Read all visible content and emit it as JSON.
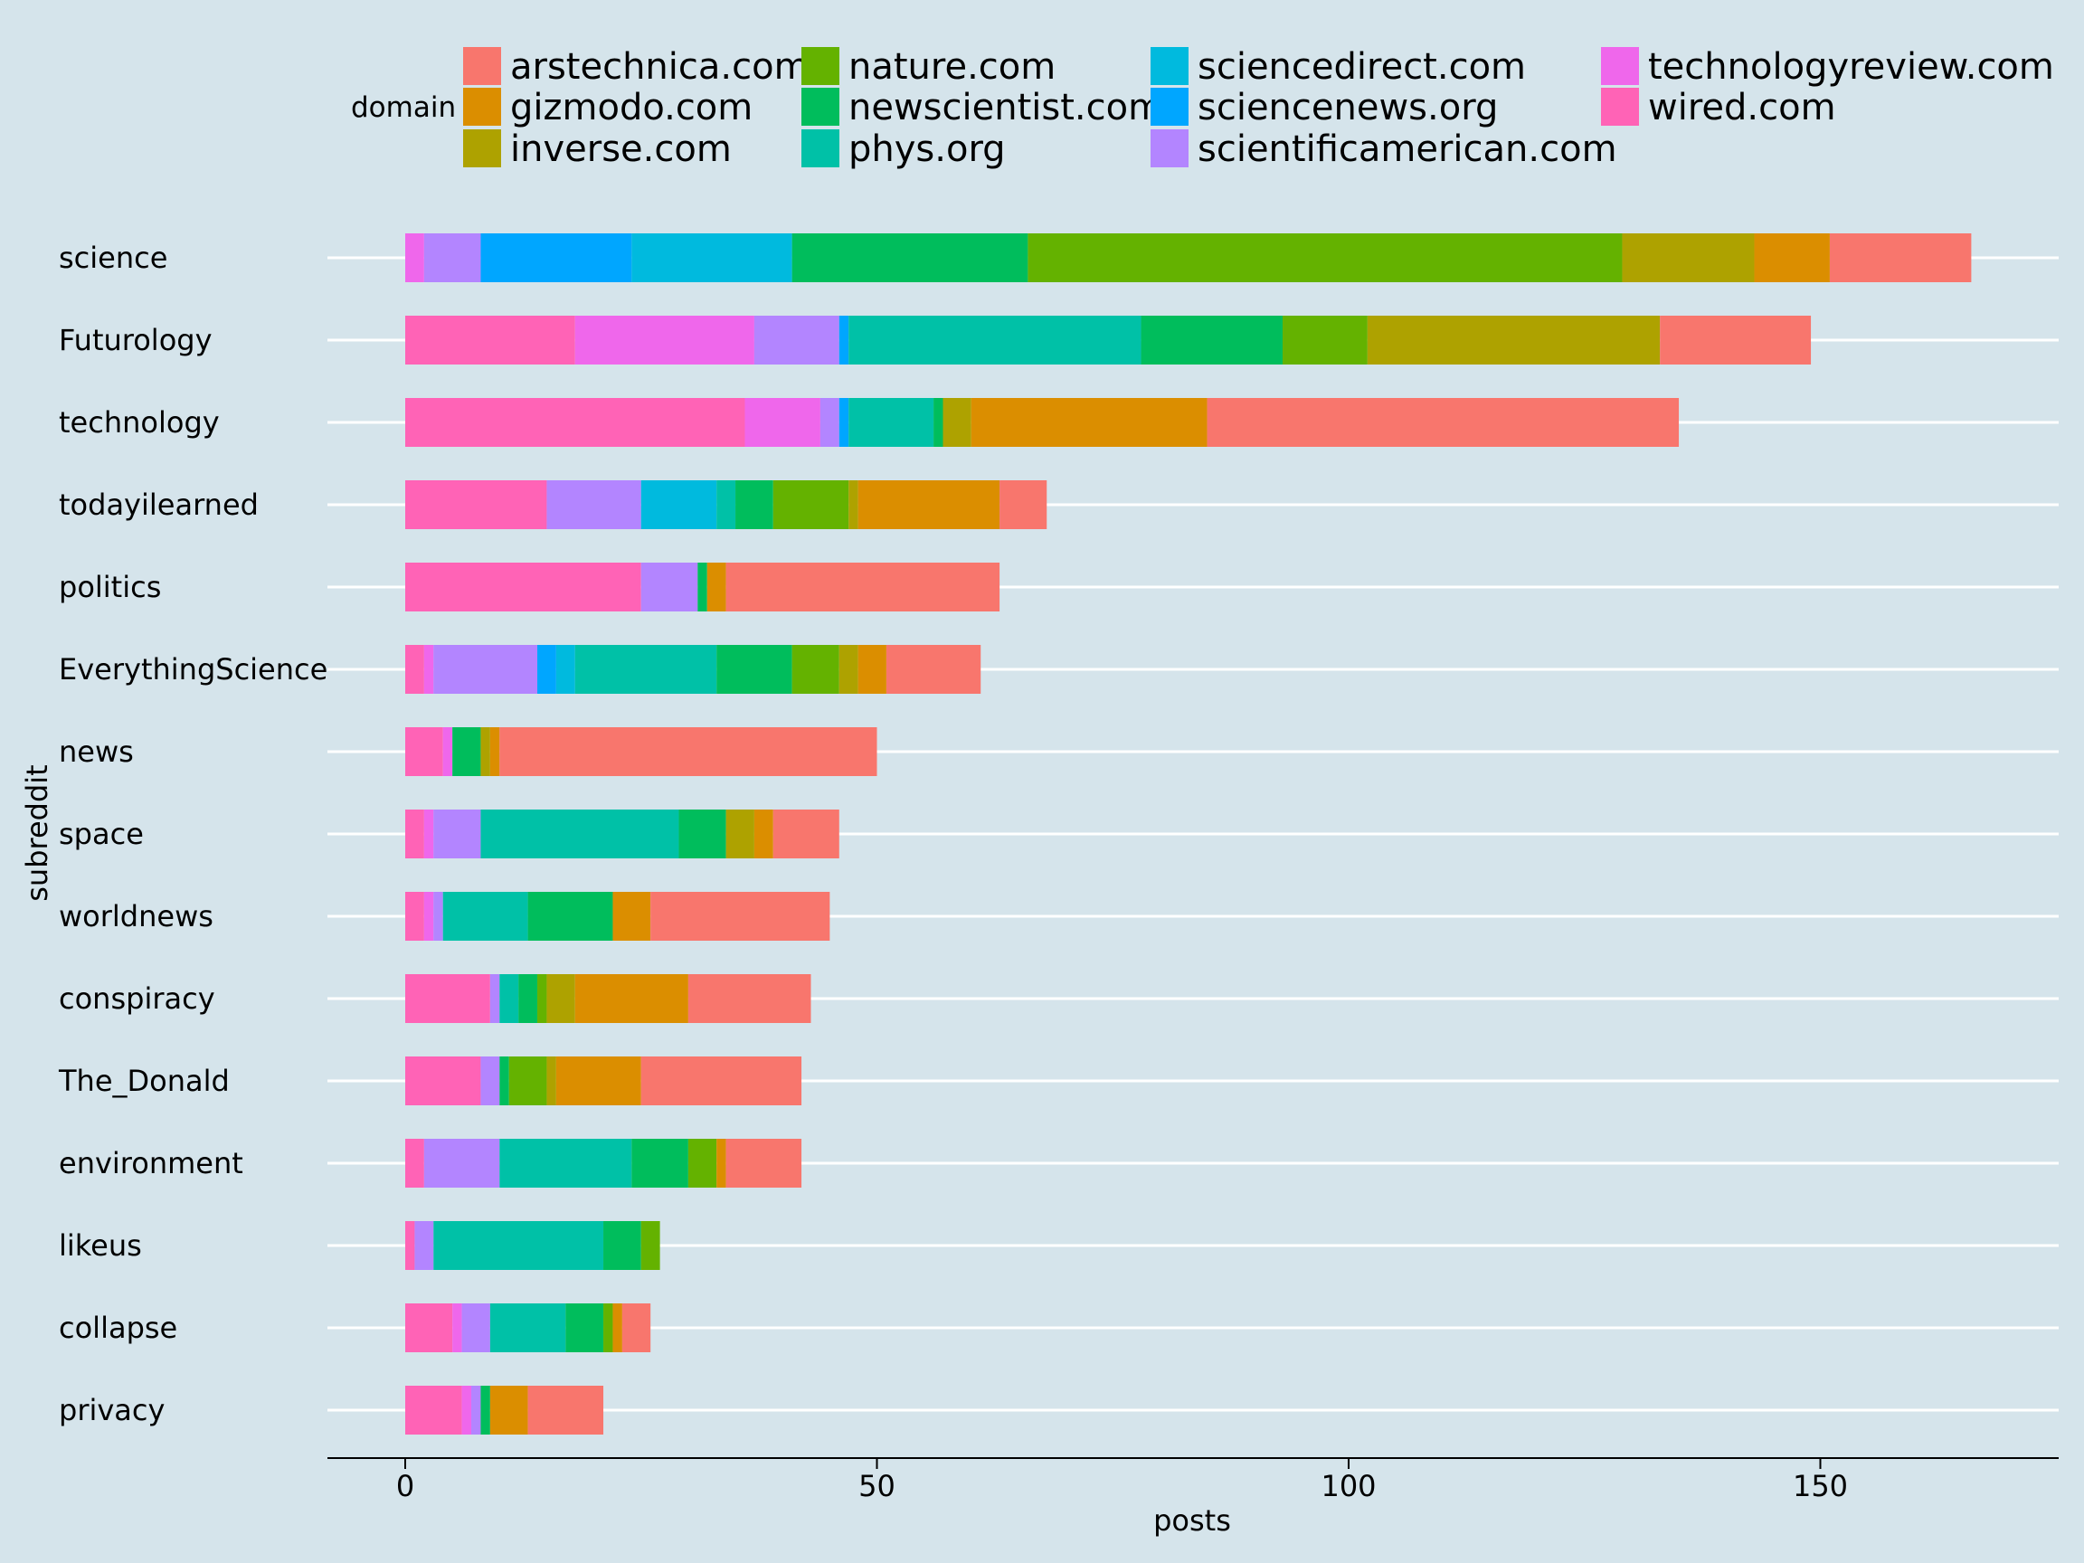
{
  "chart_data": {
    "type": "bar",
    "orientation": "horizontal",
    "stacked": true,
    "title": "",
    "xlabel": "posts",
    "ylabel": "subreddit",
    "xlim": [
      -8,
      176
    ],
    "xticks": [
      0,
      50,
      100,
      150
    ],
    "grid": "horizontal major gridlines on",
    "legend_position": "top",
    "legend_title": "domain",
    "categories": [
      "science",
      "Futurology",
      "technology",
      "todayilearned",
      "politics",
      "EverythingScience",
      "news",
      "space",
      "worldnews",
      "conspiracy",
      "The_Donald",
      "environment",
      "likeus",
      "collapse",
      "privacy"
    ],
    "stack_order": [
      "wired.com",
      "technologyreview.com",
      "scientificamerican.com",
      "sciencenews.org",
      "sciencedirect.com",
      "phys.org",
      "newscientist.com",
      "nature.com",
      "inverse.com",
      "gizmodo.com",
      "arstechnica.com"
    ],
    "legend_order": [
      "arstechnica.com",
      "gizmodo.com",
      "inverse.com",
      "nature.com",
      "newscientist.com",
      "phys.org",
      "sciencedirect.com",
      "sciencenews.org",
      "scientificamerican.com",
      "technologyreview.com",
      "wired.com"
    ],
    "series": [
      {
        "name": "arstechnica.com",
        "color": "#F8766D",
        "values": [
          15,
          16,
          50,
          5,
          29,
          10,
          40,
          7,
          19,
          13,
          17,
          8,
          0,
          3,
          8
        ]
      },
      {
        "name": "gizmodo.com",
        "color": "#DB8E00",
        "values": [
          8,
          0,
          25,
          15,
          2,
          3,
          1,
          2,
          4,
          12,
          9,
          1,
          0,
          1,
          4
        ]
      },
      {
        "name": "inverse.com",
        "color": "#AEA200",
        "values": [
          14,
          31,
          3,
          1,
          0,
          2,
          1,
          3,
          0,
          3,
          1,
          0,
          0,
          0,
          0
        ]
      },
      {
        "name": "nature.com",
        "color": "#64B200",
        "values": [
          63,
          9,
          0,
          8,
          0,
          5,
          0,
          0,
          0,
          1,
          4,
          3,
          2,
          1,
          0
        ]
      },
      {
        "name": "newscientist.com",
        "color": "#00BD5C",
        "values": [
          25,
          15,
          1,
          4,
          1,
          8,
          3,
          5,
          9,
          2,
          1,
          6,
          4,
          4,
          1
        ]
      },
      {
        "name": "phys.org",
        "color": "#00C1A7",
        "values": [
          0,
          31,
          9,
          2,
          0,
          15,
          0,
          21,
          9,
          2,
          0,
          14,
          18,
          8,
          0
        ]
      },
      {
        "name": "sciencedirect.com",
        "color": "#00BADE",
        "values": [
          17,
          0,
          0,
          8,
          0,
          2,
          0,
          0,
          0,
          0,
          0,
          0,
          0,
          0,
          0
        ]
      },
      {
        "name": "sciencenews.org",
        "color": "#00A6FF",
        "values": [
          16,
          1,
          1,
          0,
          0,
          2,
          0,
          0,
          0,
          0,
          0,
          0,
          0,
          0,
          0
        ]
      },
      {
        "name": "scientificamerican.com",
        "color": "#B385FF",
        "values": [
          6,
          9,
          2,
          10,
          6,
          11,
          0,
          5,
          1,
          1,
          2,
          8,
          2,
          3,
          1
        ]
      },
      {
        "name": "technologyreview.com",
        "color": "#EF67EB",
        "values": [
          2,
          19,
          8,
          0,
          0,
          1,
          1,
          1,
          1,
          0,
          0,
          0,
          0,
          1,
          1
        ]
      },
      {
        "name": "wired.com",
        "color": "#FF63B6",
        "values": [
          0,
          18,
          36,
          15,
          25,
          2,
          4,
          2,
          2,
          9,
          8,
          2,
          1,
          5,
          6
        ]
      }
    ]
  }
}
